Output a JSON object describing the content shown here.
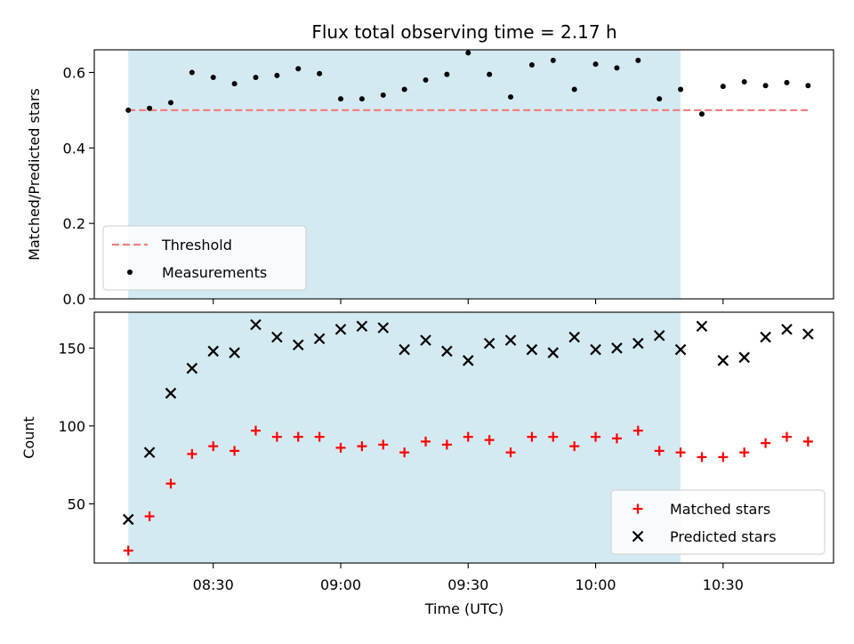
{
  "chart_data": {
    "type": "scatter",
    "title": "Flux total observing time = 2.17 h",
    "xlabel": "Time (UTC)",
    "x_ticks": [
      "08:30",
      "09:00",
      "09:30",
      "10:00",
      "10:30"
    ],
    "x_range": [
      "08:02",
      "10:56"
    ],
    "shaded_interval": [
      "08:10",
      "10:20"
    ],
    "colors": {
      "shade": "#add8e6",
      "threshold": "#f08080",
      "measurement": "#000000",
      "matched": "#ff0000",
      "predicted": "#000000"
    },
    "panels": [
      {
        "ylabel": "Matched/Predicted stars",
        "ylim": [
          0,
          0.66
        ],
        "y_ticks": [
          "0.0",
          "0.2",
          "0.4",
          "0.6"
        ],
        "legend_position": "lower-left",
        "threshold": {
          "name": "Threshold",
          "value": 0.5,
          "x_start": "08:10",
          "x_end": "10:50"
        },
        "series": [
          {
            "name": "Measurements",
            "marker": "dot",
            "x": [
              "08:10",
              "08:15",
              "08:20",
              "08:25",
              "08:30",
              "08:35",
              "08:40",
              "08:45",
              "08:50",
              "08:55",
              "09:00",
              "09:05",
              "09:10",
              "09:15",
              "09:20",
              "09:25",
              "09:30",
              "09:35",
              "09:40",
              "09:45",
              "09:50",
              "09:55",
              "10:00",
              "10:05",
              "10:10",
              "10:15",
              "10:20",
              "10:25",
              "10:30",
              "10:35",
              "10:40",
              "10:45",
              "10:50"
            ],
            "y": [
              0.5,
              0.505,
              0.52,
              0.6,
              0.587,
              0.57,
              0.587,
              0.592,
              0.61,
              0.597,
              0.53,
              0.53,
              0.54,
              0.555,
              0.58,
              0.595,
              0.652,
              0.595,
              0.535,
              0.62,
              0.632,
              0.555,
              0.622,
              0.612,
              0.632,
              0.53,
              0.555,
              0.49,
              0.563,
              0.575,
              0.565,
              0.573,
              0.565
            ]
          }
        ]
      },
      {
        "ylabel": "Count",
        "ylim": [
          12,
          173
        ],
        "y_ticks": [
          "50",
          "100",
          "150"
        ],
        "legend_position": "lower-right",
        "series": [
          {
            "name": "Matched stars",
            "marker": "plus",
            "x": [
              "08:10",
              "08:15",
              "08:20",
              "08:25",
              "08:30",
              "08:35",
              "08:40",
              "08:45",
              "08:50",
              "08:55",
              "09:00",
              "09:05",
              "09:10",
              "09:15",
              "09:20",
              "09:25",
              "09:30",
              "09:35",
              "09:40",
              "09:45",
              "09:50",
              "09:55",
              "10:00",
              "10:05",
              "10:10",
              "10:15",
              "10:20",
              "10:25",
              "10:30",
              "10:35",
              "10:40",
              "10:45",
              "10:50"
            ],
            "y": [
              20,
              42,
              63,
              82,
              87,
              84,
              97,
              93,
              93,
              93,
              86,
              87,
              88,
              83,
              90,
              88,
              93,
              91,
              83,
              93,
              93,
              87,
              93,
              92,
              97,
              84,
              83,
              80,
              80,
              83,
              89,
              93,
              90
            ]
          },
          {
            "name": "Predicted stars",
            "marker": "x",
            "x": [
              "08:10",
              "08:15",
              "08:20",
              "08:25",
              "08:30",
              "08:35",
              "08:40",
              "08:45",
              "08:50",
              "08:55",
              "09:00",
              "09:05",
              "09:10",
              "09:15",
              "09:20",
              "09:25",
              "09:30",
              "09:35",
              "09:40",
              "09:45",
              "09:50",
              "09:55",
              "10:00",
              "10:05",
              "10:10",
              "10:15",
              "10:20",
              "10:25",
              "10:30",
              "10:35",
              "10:40",
              "10:45",
              "10:50"
            ],
            "y": [
              40,
              83,
              121,
              137,
              148,
              147,
              165,
              157,
              152,
              156,
              162,
              164,
              163,
              149,
              155,
              148,
              142,
              153,
              155,
              149,
              147,
              157,
              149,
              150,
              153,
              158,
              149,
              164,
              142,
              144,
              157,
              162,
              159
            ]
          }
        ]
      }
    ]
  }
}
